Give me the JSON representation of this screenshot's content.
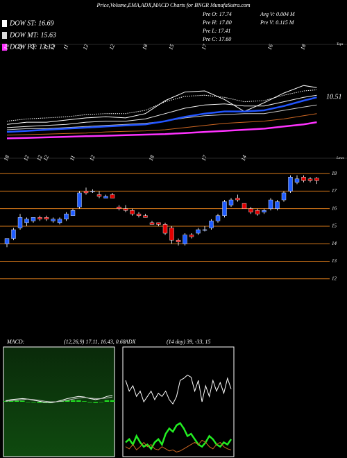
{
  "header": {
    "title": "Price,Volume,EMA,ADX,MACD Charts for BNGR MunafaSutra.com",
    "dow": [
      {
        "label": "DOW ST: 16.69",
        "color": "#ffffff"
      },
      {
        "label": "DOW MT: 15.63",
        "color": "#dddddd"
      },
      {
        "label": "DOW PT: 13.12",
        "color": "#ff33ff"
      }
    ],
    "stats_left": [
      "Pre   O: 17.74",
      "Pre   H: 17.80",
      "Pre   L: 17.41",
      "Pre   C: 17.60"
    ],
    "stats_right": [
      "Avg V: 0.004  M",
      "Pre   V: 0.115 M"
    ]
  },
  "chart_data": [
    {
      "type": "line",
      "annotation": "10.51",
      "axis_note": "Tops",
      "x": [
        0,
        3,
        6,
        9,
        12,
        15,
        18,
        21,
        24,
        27,
        30,
        33,
        36,
        39,
        42,
        45,
        47
      ],
      "xlim": [
        0,
        47
      ],
      "xticks": [
        {
          "value": 0,
          "label": "18"
        },
        {
          "value": 2,
          "label": "12"
        },
        {
          "value": 4,
          "label": "12"
        },
        {
          "value": 6,
          "label": "11"
        },
        {
          "value": 7,
          "label": "12"
        },
        {
          "value": 9,
          "label": "11"
        },
        {
          "value": 12,
          "label": "12"
        },
        {
          "value": 16,
          "label": "12"
        },
        {
          "value": 21,
          "label": "18"
        },
        {
          "value": 25,
          "label": "15"
        },
        {
          "value": 30,
          "label": "17"
        },
        {
          "value": 40,
          "label": "16"
        },
        {
          "value": 45,
          "label": "18"
        }
      ],
      "ylim": [
        12,
        21
      ],
      "series": [
        {
          "color": "#ffffff",
          "style": "thin",
          "values": [
            14.3,
            14.5,
            14.5,
            14.7,
            14.9,
            15.0,
            14.9,
            15.3,
            16.5,
            17.3,
            17.4,
            16.6,
            15.5,
            16.3,
            17.2,
            17.9,
            17.7
          ]
        },
        {
          "color": "#ffffff",
          "style": "dotted",
          "values": [
            14.6,
            14.8,
            14.9,
            15.0,
            15.2,
            15.3,
            15.3,
            15.6,
            16.4,
            16.9,
            17.0,
            16.8,
            16.4,
            16.5,
            17.0,
            17.4,
            17.5
          ]
        },
        {
          "color": "#eeeeee",
          "style": "thin",
          "values": [
            14.0,
            14.1,
            14.2,
            14.3,
            14.5,
            14.6,
            14.6,
            14.8,
            15.3,
            15.8,
            16.1,
            16.2,
            16.0,
            16.0,
            16.4,
            16.8,
            17.0
          ]
        },
        {
          "color": "#cccccc",
          "style": "thin",
          "values": [
            13.8,
            13.9,
            13.9,
            14.0,
            14.1,
            14.2,
            14.3,
            14.4,
            14.6,
            14.9,
            15.1,
            15.2,
            15.3,
            15.3,
            15.6,
            15.9,
            16.1
          ]
        },
        {
          "color": "#2255ff",
          "style": "thick",
          "values": [
            13.6,
            13.7,
            13.8,
            13.9,
            14.0,
            14.1,
            14.2,
            14.3,
            14.6,
            15.0,
            15.3,
            15.5,
            15.5,
            15.6,
            16.0,
            16.5,
            16.8
          ]
        },
        {
          "color": "#cc6622",
          "style": "thin",
          "values": [
            13.3,
            13.35,
            13.4,
            13.45,
            13.5,
            13.6,
            13.65,
            13.7,
            13.8,
            14.0,
            14.2,
            14.4,
            14.5,
            14.6,
            14.8,
            15.1,
            15.3
          ]
        },
        {
          "color": "#ff33ff",
          "style": "thick",
          "values": [
            13.0,
            13.05,
            13.1,
            13.15,
            13.2,
            13.25,
            13.3,
            13.35,
            13.4,
            13.5,
            13.6,
            13.7,
            13.8,
            13.9,
            14.1,
            14.3,
            14.5
          ]
        }
      ]
    },
    {
      "type": "candlestick",
      "axis_note": "Lows",
      "categories": [
        "18",
        null,
        null,
        "12",
        null,
        "12",
        "12",
        null,
        null,
        null,
        "11",
        null,
        null,
        "12",
        null,
        null,
        null,
        null,
        null,
        null,
        null,
        null,
        "18",
        null,
        null,
        null,
        null,
        null,
        null,
        null,
        "17",
        null,
        null,
        null,
        null,
        null,
        "14",
        null,
        null,
        null,
        null,
        null,
        null,
        null,
        null,
        null,
        null,
        null
      ],
      "open": [
        14.0,
        14.3,
        14.9,
        15.2,
        15.3,
        15.5,
        15.5,
        15.3,
        15.2,
        15.4,
        15.6,
        16.1,
        17.0,
        17.0,
        16.8,
        16.6,
        16.8,
        16.1,
        16.0,
        15.9,
        15.7,
        15.6,
        15.2,
        15.2,
        15.1,
        14.9,
        14.2,
        14.0,
        14.5,
        14.6,
        14.8,
        14.9,
        15.3,
        15.6,
        16.2,
        16.6,
        16.3,
        16.0,
        15.9,
        15.8,
        16.0,
        16.0,
        16.5,
        17.0,
        17.5,
        17.8,
        17.7,
        17.74
      ],
      "high": [
        14.3,
        14.9,
        15.7,
        15.5,
        15.5,
        15.6,
        15.6,
        15.5,
        15.5,
        15.8,
        16.0,
        17.0,
        17.2,
        17.1,
        17.0,
        16.8,
        16.9,
        16.2,
        16.2,
        16.0,
        15.8,
        15.7,
        15.3,
        15.2,
        15.2,
        15.0,
        14.3,
        14.6,
        14.6,
        14.9,
        15.0,
        15.4,
        15.7,
        16.5,
        16.6,
        16.8,
        16.3,
        16.1,
        16.0,
        16.0,
        16.6,
        16.5,
        17.0,
        17.9,
        17.9,
        17.9,
        17.8,
        17.8
      ],
      "low": [
        13.8,
        14.2,
        14.8,
        15.0,
        15.2,
        15.3,
        15.3,
        15.2,
        15.1,
        15.3,
        15.6,
        16.0,
        16.8,
        16.9,
        16.6,
        16.6,
        16.6,
        15.9,
        15.8,
        15.6,
        15.5,
        15.5,
        15.1,
        15.0,
        14.5,
        14.0,
        13.9,
        13.9,
        14.3,
        14.5,
        14.7,
        14.8,
        15.2,
        15.5,
        16.1,
        16.4,
        16.0,
        15.7,
        15.6,
        15.7,
        15.9,
        15.9,
        16.4,
        16.9,
        17.4,
        17.5,
        17.5,
        17.41
      ],
      "close": [
        14.3,
        14.8,
        15.5,
        15.4,
        15.5,
        15.4,
        15.4,
        15.4,
        15.4,
        15.7,
        15.9,
        16.9,
        16.9,
        17.0,
        16.7,
        16.7,
        16.6,
        16.0,
        15.9,
        15.7,
        15.6,
        15.5,
        15.1,
        15.1,
        14.6,
        14.2,
        14.1,
        14.5,
        14.4,
        14.8,
        14.8,
        15.3,
        15.6,
        16.4,
        16.5,
        16.5,
        16.0,
        15.8,
        15.7,
        15.9,
        16.5,
        16.4,
        16.9,
        17.8,
        17.7,
        17.6,
        17.6,
        17.6
      ],
      "up_color": "#1f5cff",
      "down_color": "#e00000",
      "ylim": [
        11,
        18.6
      ],
      "yticks": [
        12,
        13,
        14,
        15,
        16,
        17,
        18
      ],
      "grid": true,
      "grid_color": "#d97a1a"
    },
    {
      "type": "macd",
      "title": "MACD:",
      "subtitle": "(12,26,9) 17.11, 16.43, 0.68",
      "ylim": [
        -10,
        10
      ],
      "series": [
        {
          "color": "#ffffff",
          "style": "thin",
          "values": [
            0.2,
            0.4,
            0.5,
            0.6,
            0.5,
            0.3,
            0.1,
            -0.1,
            -0.2,
            0.0,
            0.3,
            0.6,
            0.8,
            1.0,
            0.9,
            0.6,
            0.4,
            0.6,
            1.0,
            1.2
          ]
        },
        {
          "color": "#bbbbbb",
          "style": "thin",
          "values": [
            0.1,
            0.2,
            0.3,
            0.4,
            0.5,
            0.4,
            0.3,
            0.1,
            0.0,
            0.0,
            0.1,
            0.3,
            0.5,
            0.7,
            0.8,
            0.7,
            0.6,
            0.6,
            0.7,
            0.9
          ]
        }
      ],
      "histogram": {
        "color": "#22dd22",
        "values": [
          0.1,
          0.2,
          0.2,
          0.2,
          0.0,
          -0.1,
          -0.2,
          -0.2,
          -0.2,
          0.0,
          0.2,
          0.3,
          0.3,
          0.3,
          0.1,
          -0.1,
          -0.2,
          0.0,
          0.3,
          0.3
        ]
      }
    },
    {
      "type": "line",
      "title": "ADX",
      "subtitle": "(14 day) 39, -33, 15",
      "ylim": [
        0,
        100
      ],
      "series": [
        {
          "color": "#ffffff",
          "style": "thin",
          "values": [
            70,
            60,
            65,
            55,
            60,
            50,
            55,
            60,
            52,
            58,
            55,
            60,
            52,
            48,
            55,
            70,
            72,
            75,
            73,
            60,
            70,
            50,
            65,
            55,
            70,
            60,
            68,
            58,
            72,
            62
          ]
        },
        {
          "color": "#22ee22",
          "style": "thick",
          "values": [
            12,
            15,
            10,
            18,
            12,
            8,
            10,
            6,
            12,
            15,
            10,
            20,
            25,
            22,
            28,
            30,
            25,
            18,
            20,
            15,
            10,
            8,
            12,
            18,
            15,
            10,
            8,
            12,
            10,
            15
          ]
        },
        {
          "color": "#cc6622",
          "style": "thin",
          "values": [
            8,
            6,
            10,
            5,
            8,
            12,
            8,
            10,
            6,
            5,
            8,
            6,
            4,
            5,
            3,
            4,
            6,
            8,
            10,
            12,
            10,
            14,
            12,
            8,
            6,
            10,
            12,
            8,
            6,
            5
          ]
        }
      ]
    }
  ]
}
